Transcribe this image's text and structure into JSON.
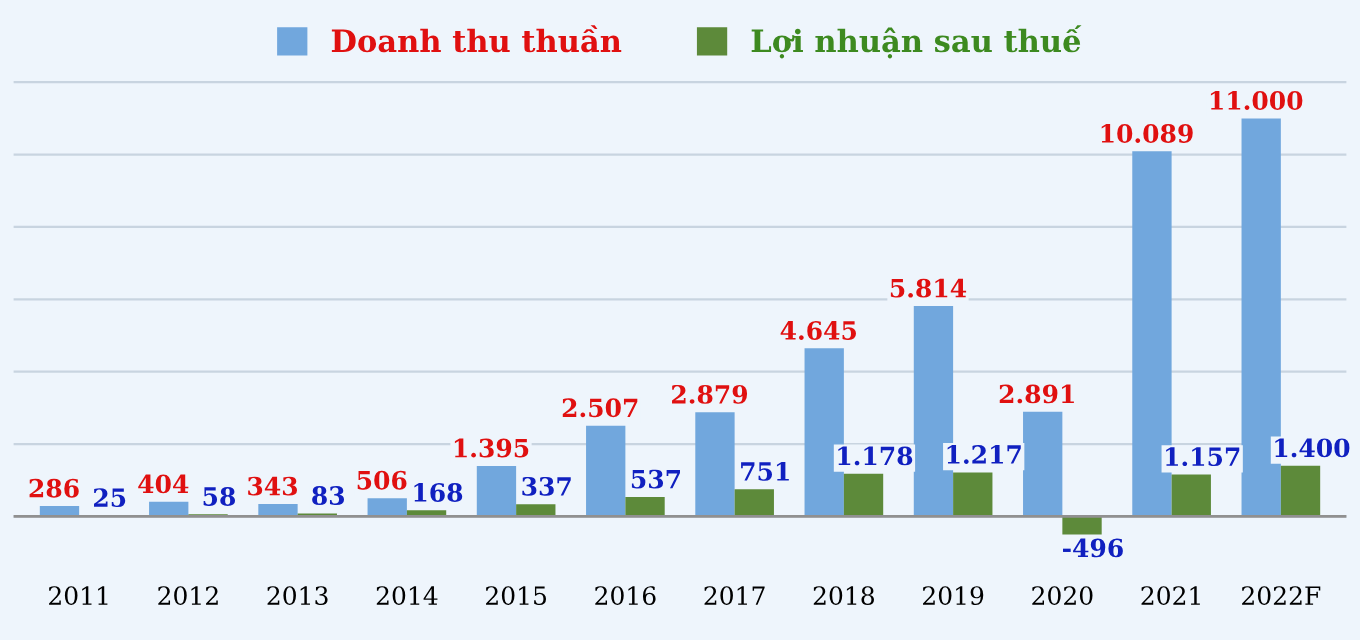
{
  "chart_data": {
    "type": "bar",
    "categories": [
      "2011",
      "2012",
      "2013",
      "2014",
      "2015",
      "2016",
      "2017",
      "2018",
      "2019",
      "2020",
      "2021",
      "2022F"
    ],
    "series": [
      {
        "name": "Doanh thu thuần",
        "color": "#71a7dd",
        "values": [
          286,
          404,
          343,
          506,
          1395,
          2507,
          2879,
          4645,
          5814,
          2891,
          10089,
          11000
        ],
        "value_labels": [
          "286",
          "404",
          "343",
          "506",
          "1.395",
          "2.507",
          "2.879",
          "4.645",
          "5.814",
          "2.891",
          "10.089",
          "11.000"
        ]
      },
      {
        "name": "Lợi nhuận sau thuế",
        "color": "#5d8a3a",
        "values": [
          25,
          58,
          83,
          168,
          337,
          537,
          751,
          1178,
          1217,
          -496,
          1157,
          1400
        ],
        "value_labels": [
          "25",
          "58",
          "83",
          "168",
          "337",
          "537",
          "751",
          "1.178",
          "1.217",
          "-496",
          "1.157",
          "1.400"
        ]
      }
    ],
    "yticks": [
      {
        "value": 0,
        "label": null
      },
      {
        "value": 2000,
        "label": null
      },
      {
        "value": 4000,
        "label": null
      },
      {
        "value": 6000,
        "label": null
      },
      {
        "value": 8000,
        "label": null
      },
      {
        "value": 10000,
        "label": null
      },
      {
        "value": 12000,
        "label": null
      }
    ],
    "tick_labels": "x",
    "grid": "y",
    "legend": "top"
  }
}
